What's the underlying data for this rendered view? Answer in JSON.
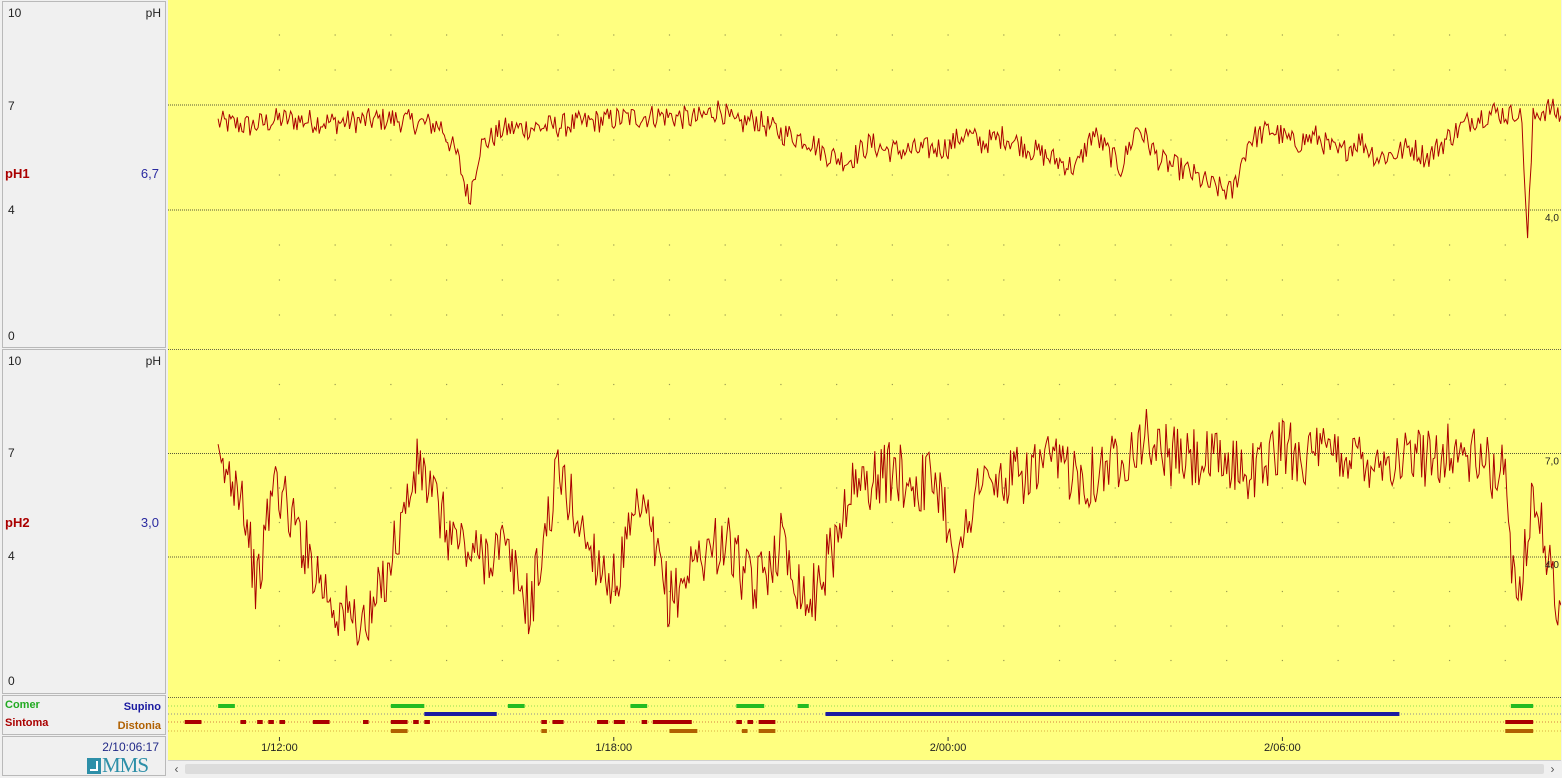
{
  "panel1": {
    "y_max_label": "10",
    "unit_label": "pH",
    "y7_label": "7",
    "y4_label": "4",
    "y0_label": "0",
    "channel": "pH1",
    "value": "6,7",
    "right_threshold_label": "4,0"
  },
  "panel2": {
    "y_max_label": "10",
    "unit_label": "pH",
    "y7_label": "7",
    "y4_label": "4",
    "y0_label": "0",
    "channel": "pH2",
    "value": "3,0",
    "right_upper_label": "7,0",
    "right_lower_label": "4,0"
  },
  "events": {
    "comer_label": "Comer",
    "supino_label": "Supino",
    "sintoma_label": "Sintoma",
    "distonia_label": "Distonia",
    "colors": {
      "comer": "#22bb22",
      "supino": "#1a1aa0",
      "sintoma": "#aa0000",
      "distonia": "#b06000"
    }
  },
  "footer": {
    "clock": "2/10:06:17",
    "logo_text": "MMS"
  },
  "time_axis": {
    "ticks": [
      "1/12:00",
      "1/18:00",
      "2/00:00",
      "2/06:00"
    ]
  },
  "chart_data": [
    {
      "type": "line",
      "title": "",
      "ylabel": "pH",
      "ylim": [
        0,
        10
      ],
      "reference_lines": [
        7,
        4
      ],
      "series": [
        {
          "name": "pH1",
          "x": [
            10.9,
            11.5,
            12.0,
            13.0,
            14.0,
            14.9,
            15.2,
            15.4,
            15.6,
            16.0,
            17.0,
            18.0,
            18.8,
            19.5,
            19.9,
            20.2,
            20.5,
            21.0,
            21.5,
            21.8,
            22.2,
            22.6,
            22.9,
            23.4,
            24.0,
            24.3,
            24.6,
            25.0,
            25.8,
            26.3,
            26.6,
            27.1,
            27.4,
            27.8,
            28.3,
            28.7,
            29.1,
            29.4,
            29.8,
            30.2,
            30.6,
            31.0,
            31.4,
            31.7,
            32.0,
            32.3,
            32.6,
            33.0,
            33.4,
            33.8,
            34.1,
            34.2,
            34.3,
            34.4,
            34.5,
            34.6,
            34.8,
            35.0
          ],
          "values": [
            6.5,
            6.4,
            6.6,
            6.5,
            6.6,
            6.4,
            5.5,
            4.3,
            5.8,
            6.3,
            6.4,
            6.6,
            6.7,
            6.6,
            6.9,
            6.4,
            6.6,
            6.2,
            6.0,
            5.6,
            5.4,
            5.9,
            5.7,
            5.7,
            5.8,
            6.2,
            5.9,
            6.1,
            5.5,
            5.2,
            6.2,
            5.2,
            6.4,
            5.4,
            5.1,
            4.7,
            4.5,
            6.0,
            6.3,
            5.9,
            6.1,
            5.6,
            6.0,
            5.5,
            5.6,
            5.8,
            5.5,
            6.1,
            6.6,
            6.8,
            6.7,
            6.9,
            6.5,
            3.1,
            6.6,
            6.8,
            6.9,
            6.7
          ]
        }
      ]
    },
    {
      "type": "line",
      "title": "",
      "ylabel": "pH",
      "ylim": [
        0,
        10
      ],
      "reference_lines": [
        7,
        4
      ],
      "series": [
        {
          "name": "pH2",
          "x": [
            10.9,
            11.3,
            11.6,
            11.9,
            12.4,
            13.0,
            13.6,
            14.0,
            14.5,
            15.0,
            15.5,
            16.0,
            16.5,
            17.0,
            17.5,
            18.0,
            18.5,
            19.0,
            19.5,
            20.0,
            20.5,
            21.0,
            21.5,
            22.0,
            22.2,
            23.0,
            23.4,
            23.8,
            24.2,
            24.5,
            24.8,
            25.5,
            26.0,
            26.5,
            27.0,
            27.5,
            28.0,
            28.5,
            29.0,
            29.5,
            30.0,
            30.5,
            31.0,
            31.5,
            32.0,
            32.5,
            33.0,
            33.5,
            34.0,
            34.2,
            34.5,
            34.8,
            35.0
          ],
          "values": [
            6.5,
            6.2,
            3.0,
            6.3,
            4.5,
            2.5,
            2.0,
            4.0,
            6.7,
            4.8,
            4.0,
            4.3,
            2.5,
            6.5,
            4.5,
            3.2,
            5.5,
            2.7,
            4.0,
            4.5,
            3.0,
            4.5,
            2.6,
            4.5,
            5.9,
            6.5,
            6.1,
            6.3,
            3.8,
            6.2,
            6.0,
            6.5,
            6.7,
            6.3,
            6.8,
            7.5,
            6.9,
            6.8,
            6.7,
            6.5,
            7.2,
            6.9,
            7.0,
            6.9,
            6.8,
            6.9,
            7.1,
            6.8,
            6.3,
            2.5,
            6.0,
            3.5,
            2.6
          ]
        }
      ]
    },
    {
      "type": "timeline",
      "x_unit": "hour",
      "tracks": [
        {
          "name": "Comer",
          "intervals": [
            [
              10.9,
              11.2
            ],
            [
              14.0,
              14.6
            ],
            [
              16.1,
              16.4
            ],
            [
              18.3,
              18.6
            ],
            [
              20.2,
              20.7
            ],
            [
              21.3,
              21.5
            ],
            [
              34.1,
              34.3
            ],
            [
              34.3,
              34.5
            ]
          ]
        },
        {
          "name": "Supino",
          "intervals": [
            [
              14.6,
              15.9
            ],
            [
              21.8,
              32.1
            ]
          ]
        },
        {
          "name": "Sintoma",
          "intervals": [
            [
              10.3,
              10.6
            ],
            [
              11.3,
              11.4
            ],
            [
              11.6,
              11.7
            ],
            [
              11.8,
              11.9
            ],
            [
              12.0,
              12.1
            ],
            [
              12.6,
              12.9
            ],
            [
              13.5,
              13.6
            ],
            [
              14.0,
              14.3
            ],
            [
              14.4,
              14.5
            ],
            [
              14.6,
              14.7
            ],
            [
              16.7,
              16.8
            ],
            [
              16.9,
              17.1
            ],
            [
              17.7,
              17.9
            ],
            [
              18.0,
              18.2
            ],
            [
              18.5,
              18.6
            ],
            [
              18.7,
              19.4
            ],
            [
              20.2,
              20.3
            ],
            [
              20.4,
              20.5
            ],
            [
              20.6,
              20.9
            ],
            [
              34.0,
              34.5
            ]
          ]
        },
        {
          "name": "Distonia",
          "intervals": [
            [
              14.0,
              14.3
            ],
            [
              16.7,
              16.8
            ],
            [
              19.0,
              19.5
            ],
            [
              20.3,
              20.4
            ],
            [
              20.6,
              20.9
            ],
            [
              34.0,
              34.5
            ]
          ]
        }
      ]
    }
  ]
}
